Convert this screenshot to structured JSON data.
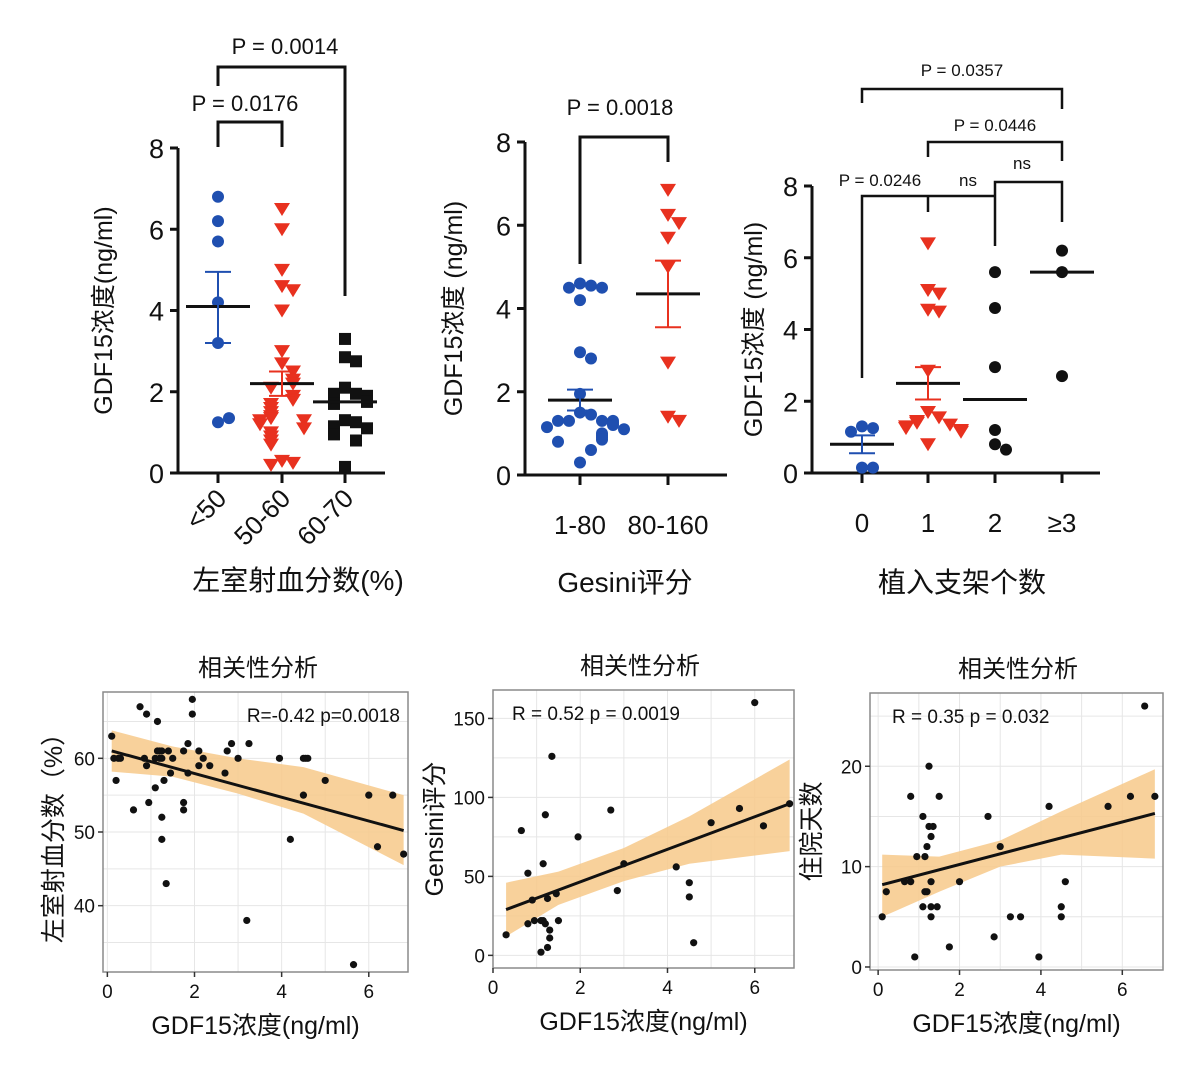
{
  "colors": {
    "blue": "#1f4fb0",
    "red": "#e8311f",
    "black": "#111111",
    "band": "#f7c98a",
    "grid": "#e6e6e6",
    "frame": "#8a8a8a"
  },
  "chart_data": [
    {
      "id": "lvef",
      "type": "scatter",
      "subtype": "dot-plot",
      "title": "",
      "xlabel": "左室射血分数(%)",
      "ylabel": "GDF15浓度(ng/ml)",
      "ylim": [
        0,
        8
      ],
      "yticks": [
        0,
        2,
        4,
        6,
        8
      ],
      "categories": [
        "<50",
        "50-60",
        "60-70"
      ],
      "groups": [
        {
          "name": "<50",
          "marker": "circle",
          "color": "blue",
          "values": [
            6.8,
            6.2,
            5.7,
            4.2,
            3.2,
            1.25,
            1.35
          ],
          "mean": 4.1,
          "sem": [
            3.2,
            4.95
          ],
          "show_sem": true
        },
        {
          "name": "50-60",
          "marker": "triangle-down",
          "color": "red",
          "values": [
            6.5,
            6.0,
            5.0,
            4.6,
            4.5,
            4.0,
            3.0,
            2.7,
            2.5,
            2.3,
            2.2,
            2.1,
            1.9,
            1.8,
            1.7,
            1.6,
            1.5,
            1.4,
            1.35,
            1.3,
            1.3,
            1.2,
            1.1,
            1.0,
            0.9,
            0.8,
            0.7,
            0.3,
            0.25,
            0.2
          ],
          "mean": 2.2,
          "sem": [
            1.9,
            2.5
          ],
          "show_sem": true
        },
        {
          "name": "60-70",
          "marker": "square",
          "color": "black",
          "values": [
            3.3,
            2.85,
            2.75,
            2.1,
            1.95,
            1.95,
            1.9,
            1.75,
            1.7,
            1.3,
            1.25,
            1.15,
            1.1,
            0.95,
            0.8,
            0.15
          ],
          "mean": 1.75,
          "sem": [
            1.55,
            1.95
          ],
          "show_sem": false
        }
      ],
      "comparisons": [
        {
          "from": 0,
          "to": 1,
          "label": "P = 0.0176",
          "level": 1
        },
        {
          "from": 0,
          "to": 2,
          "label": "P = 0.0014",
          "level": 2
        }
      ]
    },
    {
      "id": "gensini",
      "type": "scatter",
      "subtype": "dot-plot",
      "xlabel": "Gesini评分",
      "ylabel": "GDF15浓度 (ng/ml)",
      "ylim": [
        0,
        8
      ],
      "yticks": [
        0,
        2,
        4,
        6,
        8
      ],
      "categories": [
        "1-80",
        "80-160"
      ],
      "groups": [
        {
          "name": "1-80",
          "marker": "circle",
          "color": "blue",
          "values": [
            4.6,
            4.55,
            4.5,
            4.5,
            4.2,
            2.95,
            2.8,
            1.95,
            1.5,
            1.45,
            1.3,
            1.3,
            1.3,
            1.3,
            1.25,
            1.2,
            1.15,
            1.1,
            1.0,
            0.95,
            0.9,
            0.85,
            0.8,
            0.6,
            0.3
          ],
          "mean": 1.8,
          "sem": [
            1.55,
            2.05
          ],
          "show_sem": true
        },
        {
          "name": "80-160",
          "marker": "triangle-down",
          "color": "red",
          "values": [
            6.85,
            6.25,
            6.05,
            5.7,
            5.0,
            2.7,
            1.4,
            1.3
          ],
          "mean": 4.35,
          "sem": [
            3.55,
            5.15
          ],
          "show_sem": true
        }
      ],
      "comparisons": [
        {
          "from": 0,
          "to": 1,
          "label": "P = 0.0018",
          "level": 1
        }
      ]
    },
    {
      "id": "stents",
      "type": "scatter",
      "subtype": "dot-plot",
      "xlabel": "植入支架个数",
      "ylabel": "GDF15浓度 (ng/ml)",
      "ylim": [
        0,
        8
      ],
      "yticks": [
        0,
        2,
        4,
        6,
        8
      ],
      "categories": [
        "0",
        "1",
        "2",
        "≥3"
      ],
      "groups": [
        {
          "name": "0",
          "marker": "circle",
          "color": "blue",
          "values": [
            1.3,
            1.25,
            1.15,
            0.15,
            0.15
          ],
          "mean": 0.8,
          "sem": [
            0.55,
            1.05
          ],
          "show_sem": true
        },
        {
          "name": "1",
          "marker": "triangle-down",
          "color": "red",
          "values": [
            6.4,
            5.1,
            5.0,
            4.55,
            4.5,
            2.85,
            1.7,
            1.55,
            1.45,
            1.4,
            1.35,
            1.3,
            1.25,
            1.2,
            1.15,
            0.8
          ],
          "mean": 2.5,
          "sem": [
            2.05,
            2.95
          ],
          "show_sem": true
        },
        {
          "name": "2",
          "marker": "circle",
          "color": "black",
          "values": [
            5.6,
            4.6,
            2.95,
            1.2,
            0.8,
            0.65
          ],
          "mean": 2.05,
          "sem": null,
          "show_sem": false
        },
        {
          "name": "≥3",
          "marker": "circle",
          "color": "black",
          "values": [
            6.2,
            5.6,
            2.7
          ],
          "mean": 5.6,
          "sem": null,
          "show_sem": false
        }
      ],
      "comparisons": [
        {
          "from": 0,
          "to": 3,
          "label": "P = 0.0357",
          "level": 4
        },
        {
          "from": 1,
          "to": 3,
          "label": "P = 0.0446",
          "level": 3
        },
        {
          "from": 2,
          "to": 3,
          "label": "ns",
          "level": 2
        },
        {
          "from": 0,
          "to": 2,
          "label": "P = 0.0246",
          "mid_label": "ns",
          "level": 1,
          "tick_at": 1
        }
      ]
    },
    {
      "id": "corr-lvef",
      "type": "scatter",
      "title": "相关性分析",
      "xlabel": "GDF15浓度(ng/ml)",
      "ylabel": "左室射血分数（%）",
      "xlim": [
        -0.1,
        6.9
      ],
      "ylim": [
        31,
        69
      ],
      "xticks": [
        0,
        2,
        4,
        6
      ],
      "yticks": [
        40,
        50,
        60
      ],
      "grid": true,
      "annotation": "R=-0.42  p=0.0018",
      "fit": {
        "x": [
          0.1,
          6.8
        ],
        "y": [
          61,
          50.2
        ]
      },
      "band": {
        "x": [
          0.1,
          1.5,
          3,
          4.5,
          6.8
        ],
        "lower": [
          58.2,
          57.5,
          55.2,
          52.5,
          45.5
        ],
        "upper": [
          63.8,
          61.6,
          60.0,
          58.8,
          55
        ]
      },
      "points": [
        [
          0.1,
          63
        ],
        [
          0.15,
          60
        ],
        [
          0.2,
          57
        ],
        [
          0.25,
          60
        ],
        [
          0.3,
          60
        ],
        [
          0.75,
          67
        ],
        [
          0.85,
          60
        ],
        [
          0.9,
          66
        ],
        [
          0.9,
          59
        ],
        [
          0.95,
          54
        ],
        [
          0.6,
          53
        ],
        [
          1.1,
          60
        ],
        [
          1.1,
          56
        ],
        [
          1.15,
          65
        ],
        [
          1.15,
          61
        ],
        [
          1.2,
          61
        ],
        [
          1.2,
          60
        ],
        [
          1.25,
          61
        ],
        [
          1.25,
          60
        ],
        [
          1.3,
          57
        ],
        [
          1.25,
          52
        ],
        [
          1.25,
          49
        ],
        [
          1.35,
          43
        ],
        [
          1.4,
          61
        ],
        [
          1.45,
          58
        ],
        [
          1.5,
          60
        ],
        [
          1.75,
          61
        ],
        [
          1.75,
          54
        ],
        [
          1.75,
          53
        ],
        [
          1.85,
          62
        ],
        [
          1.85,
          58
        ],
        [
          1.95,
          68
        ],
        [
          1.95,
          66
        ],
        [
          2.1,
          61
        ],
        [
          2.1,
          59
        ],
        [
          2.2,
          60
        ],
        [
          2.35,
          59
        ],
        [
          2.7,
          58
        ],
        [
          2.75,
          61
        ],
        [
          2.85,
          62
        ],
        [
          3.0,
          60
        ],
        [
          3.25,
          62
        ],
        [
          3.2,
          38
        ],
        [
          3.95,
          60
        ],
        [
          4.2,
          49
        ],
        [
          4.5,
          60
        ],
        [
          4.55,
          60
        ],
        [
          4.6,
          60
        ],
        [
          4.5,
          55
        ],
        [
          5.0,
          57
        ],
        [
          5.65,
          32
        ],
        [
          6.0,
          55
        ],
        [
          6.2,
          48
        ],
        [
          6.55,
          55
        ],
        [
          6.8,
          47
        ]
      ]
    },
    {
      "id": "corr-gensini",
      "type": "scatter",
      "title": "相关性分析",
      "xlabel": "GDF15浓度(ng/ml)",
      "ylabel": "Gensini评分",
      "xlim": [
        0,
        6.9
      ],
      "ylim": [
        -8,
        168
      ],
      "xticks": [
        0,
        2,
        4,
        6
      ],
      "yticks": [
        0,
        50,
        100,
        150
      ],
      "grid": true,
      "annotation": "R = 0.52  p = 0.0019",
      "fit": {
        "x": [
          0.3,
          6.8
        ],
        "y": [
          29,
          96
        ]
      },
      "band": {
        "x": [
          0.3,
          1.5,
          3,
          4.5,
          6.8
        ],
        "lower": [
          12,
          32,
          47,
          58,
          66
        ],
        "upper": [
          46,
          53,
          68,
          88,
          124
        ]
      },
      "points": [
        [
          0.3,
          13
        ],
        [
          0.65,
          79
        ],
        [
          0.8,
          52
        ],
        [
          0.8,
          20
        ],
        [
          0.9,
          35
        ],
        [
          0.95,
          22
        ],
        [
          1.1,
          22
        ],
        [
          1.1,
          2
        ],
        [
          1.15,
          58
        ],
        [
          1.15,
          22
        ],
        [
          1.2,
          89
        ],
        [
          1.2,
          20
        ],
        [
          1.25,
          5
        ],
        [
          1.25,
          36
        ],
        [
          1.3,
          16
        ],
        [
          1.3,
          11
        ],
        [
          1.35,
          126
        ],
        [
          1.45,
          39
        ],
        [
          1.5,
          22
        ],
        [
          1.95,
          75
        ],
        [
          2.7,
          92
        ],
        [
          2.85,
          41
        ],
        [
          3.0,
          58
        ],
        [
          4.2,
          56
        ],
        [
          4.5,
          46
        ],
        [
          4.5,
          37
        ],
        [
          4.6,
          8
        ],
        [
          5.0,
          84
        ],
        [
          5.65,
          93
        ],
        [
          6.0,
          160
        ],
        [
          6.2,
          82
        ],
        [
          6.8,
          96
        ]
      ]
    },
    {
      "id": "corr-los",
      "type": "scatter",
      "title": "相关性分析",
      "xlabel": "GDF15浓度(ng/ml)",
      "ylabel": "住院天数",
      "xlim": [
        -0.2,
        7.0
      ],
      "ylim": [
        -0.3,
        27.3
      ],
      "xticks": [
        0,
        2,
        4,
        6
      ],
      "yticks": [
        0,
        10,
        20
      ],
      "grid": true,
      "annotation": "R = 0.35  p = 0.032",
      "fit": {
        "x": [
          0.1,
          6.8
        ],
        "y": [
          8.2,
          15.3
        ]
      },
      "band": {
        "x": [
          0.1,
          1.5,
          3,
          4.5,
          6.8
        ],
        "lower": [
          5.0,
          7.5,
          10.0,
          11.2,
          10.8
        ],
        "upper": [
          11.2,
          11.0,
          12.6,
          15.5,
          19.7
        ]
      },
      "points": [
        [
          0.1,
          5
        ],
        [
          0.2,
          7.5
        ],
        [
          0.65,
          8.5
        ],
        [
          0.8,
          8.5
        ],
        [
          0.8,
          17
        ],
        [
          0.9,
          1
        ],
        [
          0.95,
          11
        ],
        [
          1.1,
          15
        ],
        [
          1.1,
          6
        ],
        [
          1.15,
          11
        ],
        [
          1.15,
          7.5
        ],
        [
          1.2,
          12
        ],
        [
          1.2,
          7.5
        ],
        [
          1.25,
          20
        ],
        [
          1.25,
          14
        ],
        [
          1.3,
          13
        ],
        [
          1.3,
          8.5
        ],
        [
          1.3,
          6
        ],
        [
          1.3,
          5
        ],
        [
          1.35,
          14
        ],
        [
          1.45,
          6
        ],
        [
          1.5,
          17
        ],
        [
          1.75,
          2
        ],
        [
          2.0,
          8.5
        ],
        [
          2.7,
          15
        ],
        [
          2.85,
          3
        ],
        [
          3.0,
          12
        ],
        [
          3.25,
          5
        ],
        [
          3.5,
          5
        ],
        [
          3.95,
          1
        ],
        [
          4.2,
          16
        ],
        [
          4.5,
          6
        ],
        [
          4.5,
          5
        ],
        [
          4.6,
          8.5
        ],
        [
          5.65,
          16
        ],
        [
          6.2,
          17
        ],
        [
          6.55,
          26
        ],
        [
          6.8,
          17
        ]
      ]
    }
  ]
}
